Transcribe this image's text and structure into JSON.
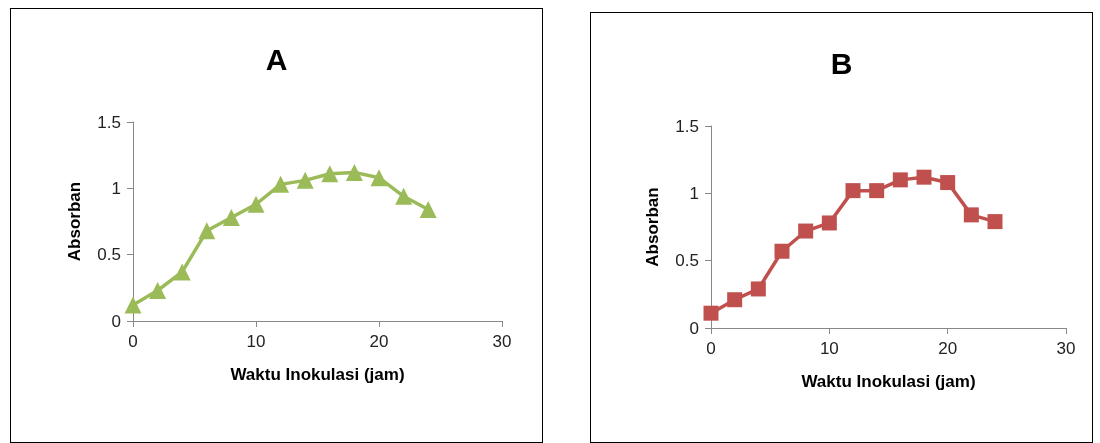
{
  "chart_data": [
    {
      "type": "line",
      "title": "A",
      "xlabel": "Waktu Inokulasi (jam)",
      "ylabel": "Absorban",
      "x": [
        0,
        2,
        4,
        6,
        8,
        10,
        12,
        14,
        16,
        18,
        20,
        22,
        24
      ],
      "series": [
        {
          "color": "#9bbb59",
          "values": [
            0.12,
            0.23,
            0.37,
            0.68,
            0.78,
            0.88,
            1.03,
            1.06,
            1.11,
            1.12,
            1.08,
            0.94,
            0.84
          ]
        }
      ],
      "xlim": [
        0,
        30
      ],
      "xticks": [
        0,
        10,
        20,
        30
      ],
      "ylim": [
        0,
        1.5
      ],
      "yticks": [
        0,
        0.5,
        1,
        1.5
      ],
      "grid": false,
      "marker": "triangle"
    },
    {
      "type": "line",
      "title": "B",
      "xlabel": "Waktu Inokulasi (jam)",
      "ylabel": "Absorban",
      "x": [
        0,
        2,
        4,
        6,
        8,
        10,
        12,
        14,
        16,
        18,
        20,
        22,
        24
      ],
      "series": [
        {
          "color": "#c0504d",
          "values": [
            0.11,
            0.21,
            0.29,
            0.57,
            0.72,
            0.78,
            1.02,
            1.02,
            1.1,
            1.12,
            1.08,
            0.84,
            0.79
          ]
        }
      ],
      "xlim": [
        0,
        30
      ],
      "xticks": [
        0,
        10,
        20,
        30
      ],
      "ylim": [
        0,
        1.5
      ],
      "yticks": [
        0,
        0.5,
        1,
        1.5
      ],
      "grid": false,
      "marker": "square"
    }
  ]
}
